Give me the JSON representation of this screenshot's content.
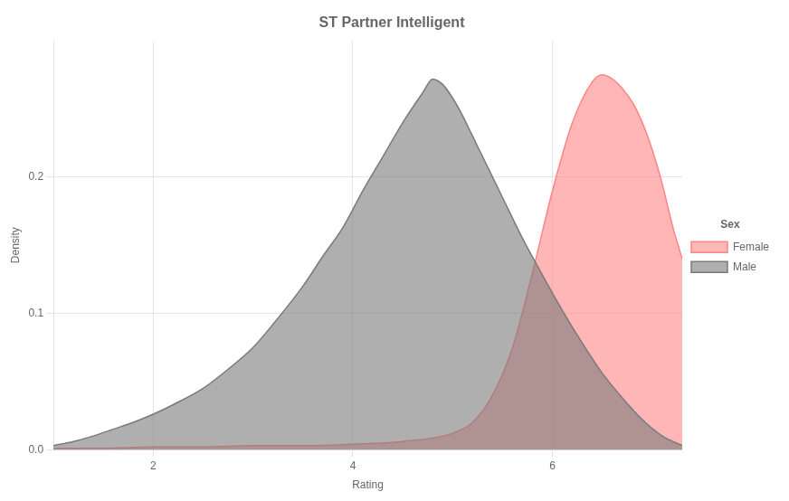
{
  "chart_data": {
    "type": "area",
    "title": "ST Partner Intelligent",
    "xlabel": "Rating",
    "ylabel": "Density",
    "xlim": [
      1,
      7.3
    ],
    "ylim": [
      0,
      0.3
    ],
    "xticks": [
      2,
      4,
      6
    ],
    "yticks": [
      {
        "value": 0.0,
        "label": "0.0"
      },
      0.1,
      0.2
    ],
    "grid": true,
    "legend": "right",
    "legend_title": "Sex",
    "series": [
      {
        "name": "Female",
        "color": "#FF8585",
        "x": [
          1.0,
          1.5,
          2.0,
          2.5,
          3.0,
          3.5,
          4.0,
          4.5,
          5.0,
          5.2,
          5.4,
          5.6,
          5.8,
          6.0,
          6.2,
          6.4,
          6.5,
          6.6,
          6.7,
          6.8,
          6.9,
          7.0,
          7.1,
          7.2,
          7.3
        ],
        "values": [
          0.001,
          0.001,
          0.002,
          0.002,
          0.003,
          0.003,
          0.004,
          0.006,
          0.012,
          0.02,
          0.04,
          0.075,
          0.13,
          0.19,
          0.24,
          0.27,
          0.275,
          0.272,
          0.265,
          0.255,
          0.24,
          0.22,
          0.195,
          0.165,
          0.14
        ]
      },
      {
        "name": "Male",
        "color": "#7a7a7a",
        "x": [
          1.0,
          1.2,
          1.4,
          1.6,
          1.8,
          2.0,
          2.2,
          2.5,
          2.8,
          3.0,
          3.2,
          3.5,
          3.7,
          3.9,
          4.1,
          4.3,
          4.5,
          4.7,
          4.8,
          4.9,
          5.0,
          5.1,
          5.2,
          5.3,
          5.5,
          5.7,
          5.9,
          6.1,
          6.3,
          6.5,
          6.7,
          6.9,
          7.1,
          7.3
        ],
        "values": [
          0.003,
          0.006,
          0.01,
          0.015,
          0.02,
          0.026,
          0.033,
          0.045,
          0.062,
          0.075,
          0.092,
          0.12,
          0.142,
          0.163,
          0.19,
          0.215,
          0.24,
          0.262,
          0.272,
          0.268,
          0.258,
          0.245,
          0.23,
          0.215,
          0.185,
          0.155,
          0.128,
          0.102,
          0.078,
          0.056,
          0.038,
          0.022,
          0.01,
          0.003
        ]
      }
    ]
  }
}
